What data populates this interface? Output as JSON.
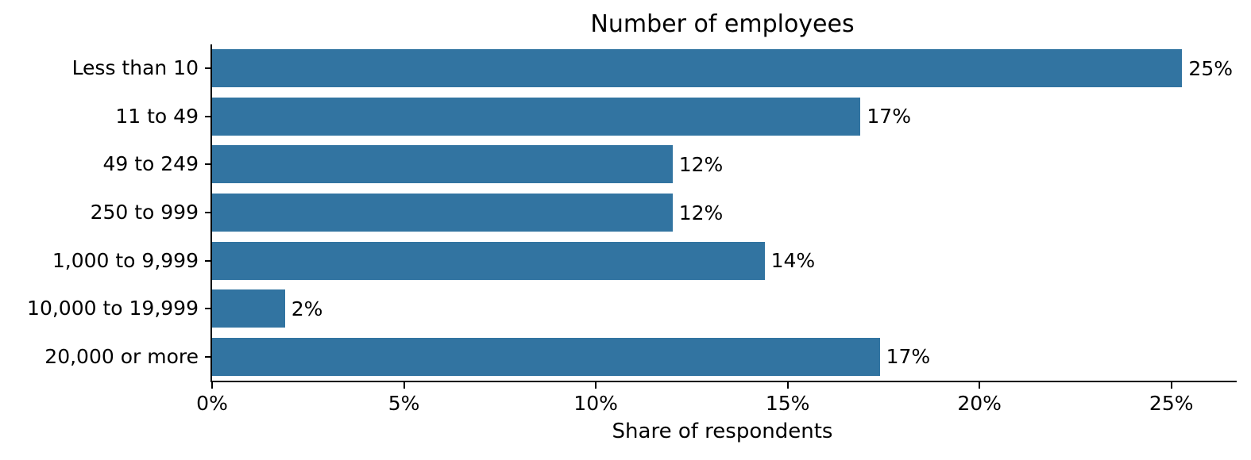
{
  "chart_data": {
    "type": "bar",
    "orientation": "horizontal",
    "title": "Number of employees",
    "xlabel": "Share of respondents",
    "ylabel": "",
    "categories": [
      "Less than 10",
      "11 to 49",
      "49 to 249",
      "250 to 999",
      "1,000 to 9,999",
      "10,000 to 19,999",
      "20,000 or more"
    ],
    "values": [
      25,
      17,
      12,
      12,
      14,
      2,
      17
    ],
    "value_labels": [
      "25%",
      "17%",
      "12%",
      "12%",
      "14%",
      "2%",
      "17%"
    ],
    "bar_lengths_precise_pct": [
      25.3,
      16.9,
      12.0,
      12.0,
      14.4,
      1.9,
      17.4
    ],
    "x_tick_labels": [
      "0%",
      "5%",
      "10%",
      "15%",
      "20%",
      "25%"
    ],
    "x_tick_values": [
      0,
      5,
      10,
      15,
      20,
      25
    ],
    "xlim": [
      0,
      26.6
    ],
    "grid": false,
    "legend": null,
    "bar_color": "#3274a1",
    "axis_color": "#000000",
    "text_color": "#000000",
    "background_color": "#ffffff"
  }
}
